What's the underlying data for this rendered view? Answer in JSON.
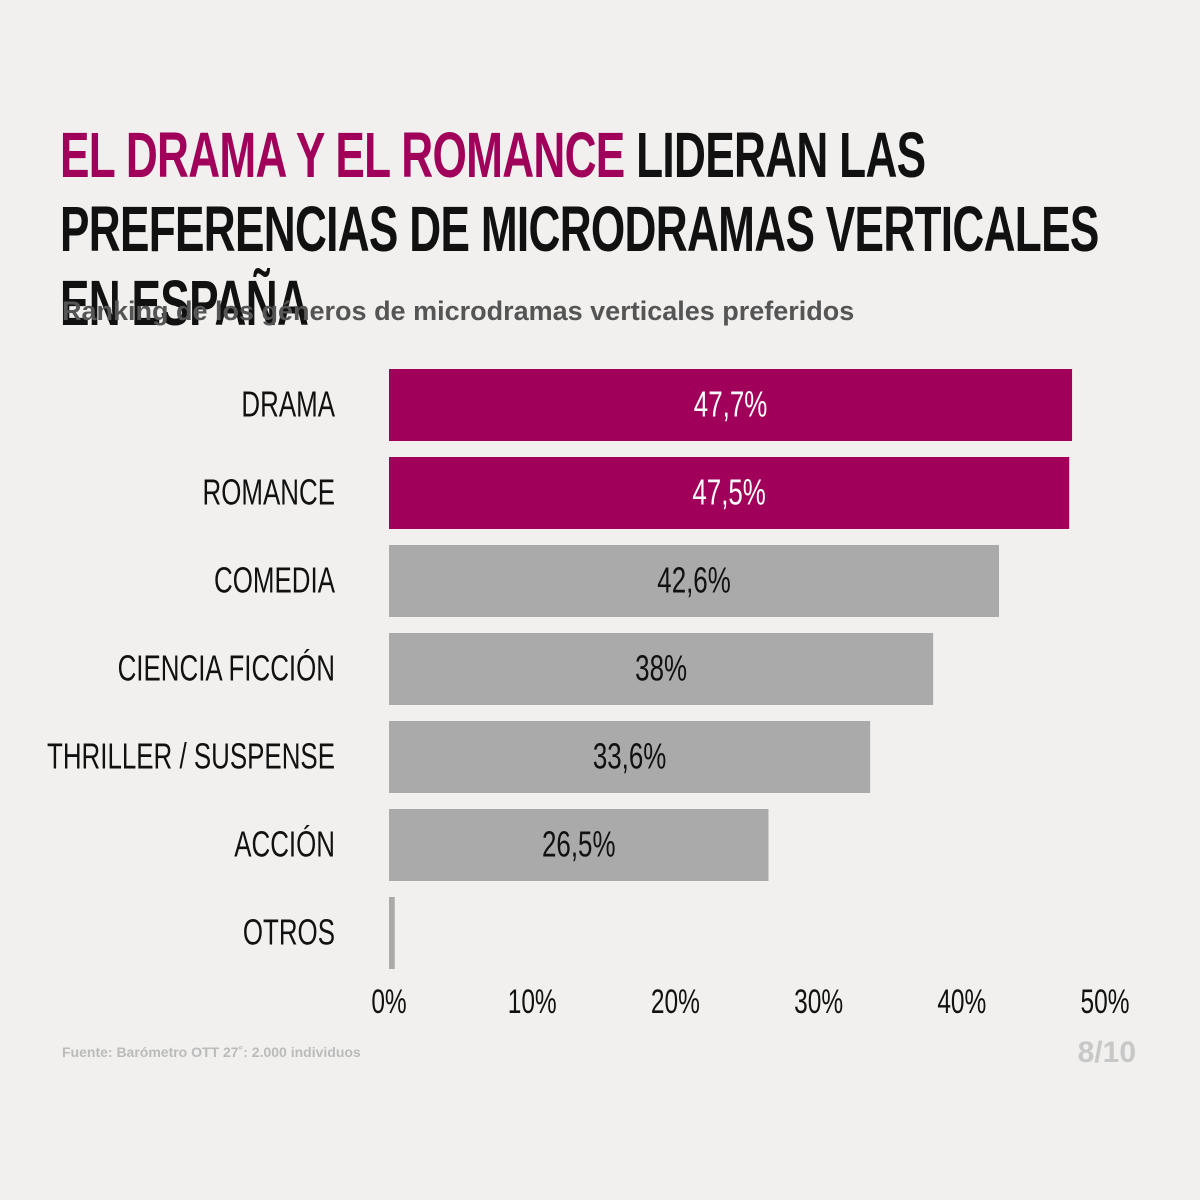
{
  "chart_data": {
    "type": "hbar",
    "title": {
      "highlight": "EL DRAMA Y EL ROMANCE",
      "rest": "LIDERAN LAS PREFERENCIAS DE MICRODRAMAS VERTICALES EN ESPAÑA",
      "highlight_color": "#a0005a"
    },
    "subtitle": "Ranking de los géneros de microdramas verticales preferidos",
    "categories": [
      "DRAMA",
      "ROMANCE",
      "COMEDIA",
      "CIENCIA FICCIÓN",
      "THRILLER / SUSPENSE",
      "ACCIÓN",
      "OTROS"
    ],
    "values": [
      47.7,
      47.5,
      42.6,
      38,
      33.6,
      26.5,
      0.4
    ],
    "value_labels": [
      "47,7%",
      "47,5%",
      "42,6%",
      "38%",
      "33,6%",
      "26,5%",
      null
    ],
    "colors": [
      "#a0005a",
      "#a0005a",
      "#aaaaaa",
      "#aaaaaa",
      "#aaaaaa",
      "#aaaaaa",
      "#aaaaaa"
    ],
    "value_label_colors": [
      "#ffffff",
      "#ffffff",
      "#111111",
      "#111111",
      "#111111",
      "#111111",
      "#111111"
    ],
    "xlim": [
      0,
      50
    ],
    "xticks": [
      {
        "value": 0,
        "label": "0%"
      },
      {
        "value": 10,
        "label": "10%"
      },
      {
        "value": 20,
        "label": "20%"
      },
      {
        "value": 30,
        "label": "30%"
      },
      {
        "value": 40,
        "label": "40%"
      },
      {
        "value": 50,
        "label": "50%"
      }
    ],
    "source": "Fuente: Barómetro OTT 27˚: 2.000 individuos",
    "page": "8/10"
  }
}
